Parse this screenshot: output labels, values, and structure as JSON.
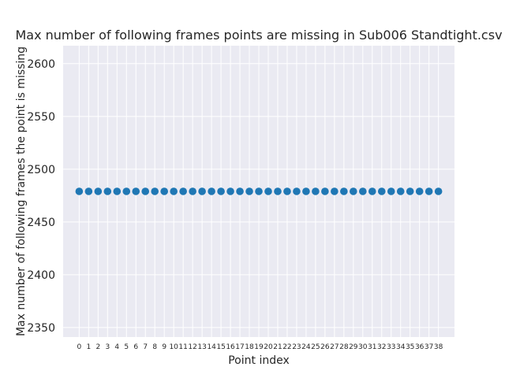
{
  "chart_data": {
    "type": "scatter",
    "title": "Max number of following frames points are missing in Sub006 Standtight.csv",
    "xlabel": "Point index",
    "ylabel": "Max number of following frames the point is missing",
    "x": [
      0,
      1,
      2,
      3,
      4,
      5,
      6,
      7,
      8,
      9,
      10,
      11,
      12,
      13,
      14,
      15,
      16,
      17,
      18,
      19,
      20,
      21,
      22,
      23,
      24,
      25,
      26,
      27,
      28,
      29,
      30,
      31,
      32,
      33,
      34,
      35,
      36,
      37,
      38
    ],
    "y": [
      2479,
      2479,
      2479,
      2479,
      2479,
      2479,
      2479,
      2479,
      2479,
      2479,
      2479,
      2479,
      2479,
      2479,
      2479,
      2479,
      2479,
      2479,
      2479,
      2479,
      2479,
      2479,
      2479,
      2479,
      2479,
      2479,
      2479,
      2479,
      2479,
      2479,
      2479,
      2479,
      2479,
      2479,
      2479,
      2479,
      2479,
      2479,
      2479
    ],
    "xlim": [
      -1.7,
      39.7
    ],
    "ylim": [
      2341,
      2617
    ],
    "yticks": [
      2350,
      2400,
      2450,
      2500,
      2550,
      2600
    ],
    "xticks": [
      0,
      1,
      2,
      3,
      4,
      5,
      6,
      7,
      8,
      9,
      10,
      11,
      12,
      13,
      14,
      15,
      16,
      17,
      18,
      19,
      20,
      21,
      22,
      23,
      24,
      25,
      26,
      27,
      28,
      29,
      30,
      31,
      32,
      33,
      34,
      35,
      36,
      37,
      38
    ],
    "marker_color": "#1f77b4",
    "background_color": "#eaeaf2",
    "grid": true
  }
}
